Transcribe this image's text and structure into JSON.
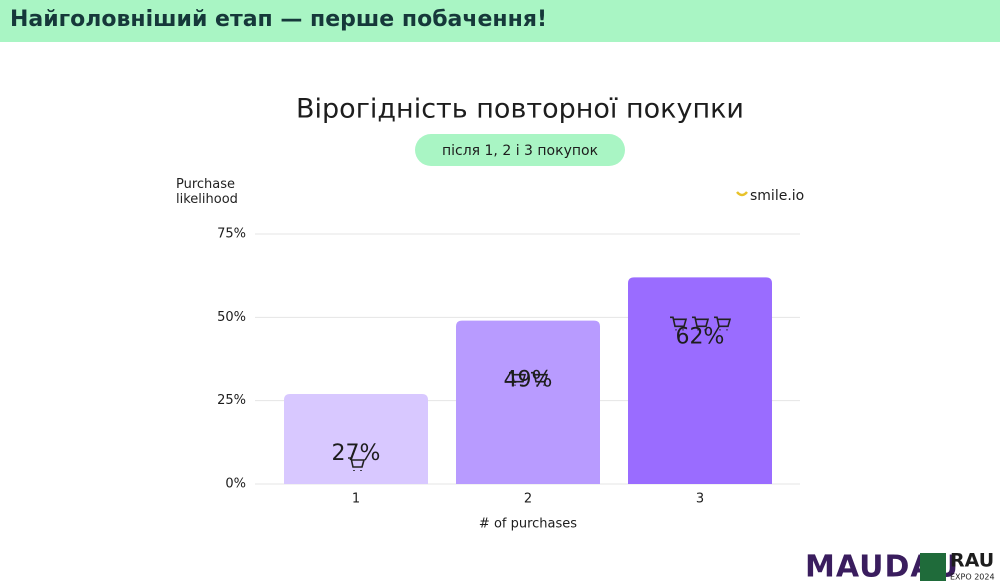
{
  "header": {
    "title": "Найголовніший етап — перше побачення!"
  },
  "chart_data": {
    "type": "bar",
    "title": "Вірогідність повторної покупки",
    "subtitle": "після 1, 2 і 3 покупок",
    "source": "smile.io",
    "y_label": "Purchase likelihood",
    "x_label": "# of purchases",
    "categories": [
      "1",
      "2",
      "3"
    ],
    "values": [
      27,
      49,
      62
    ],
    "value_labels": [
      "27%",
      "49%",
      "62%"
    ],
    "colors": [
      "#d8c8ff",
      "#b89bff",
      "#9a6cff"
    ],
    "ylim": [
      0,
      75
    ],
    "yticks": [
      {
        "value": 0,
        "label": "0%"
      },
      {
        "value": 25,
        "label": "25%"
      },
      {
        "value": 50,
        "label": "50%"
      },
      {
        "value": 75,
        "label": "75%"
      }
    ],
    "grid": true
  },
  "footer": {
    "brand": "MAUDAU",
    "logo": "RAU",
    "logo_sub": "EXPO 2024"
  }
}
